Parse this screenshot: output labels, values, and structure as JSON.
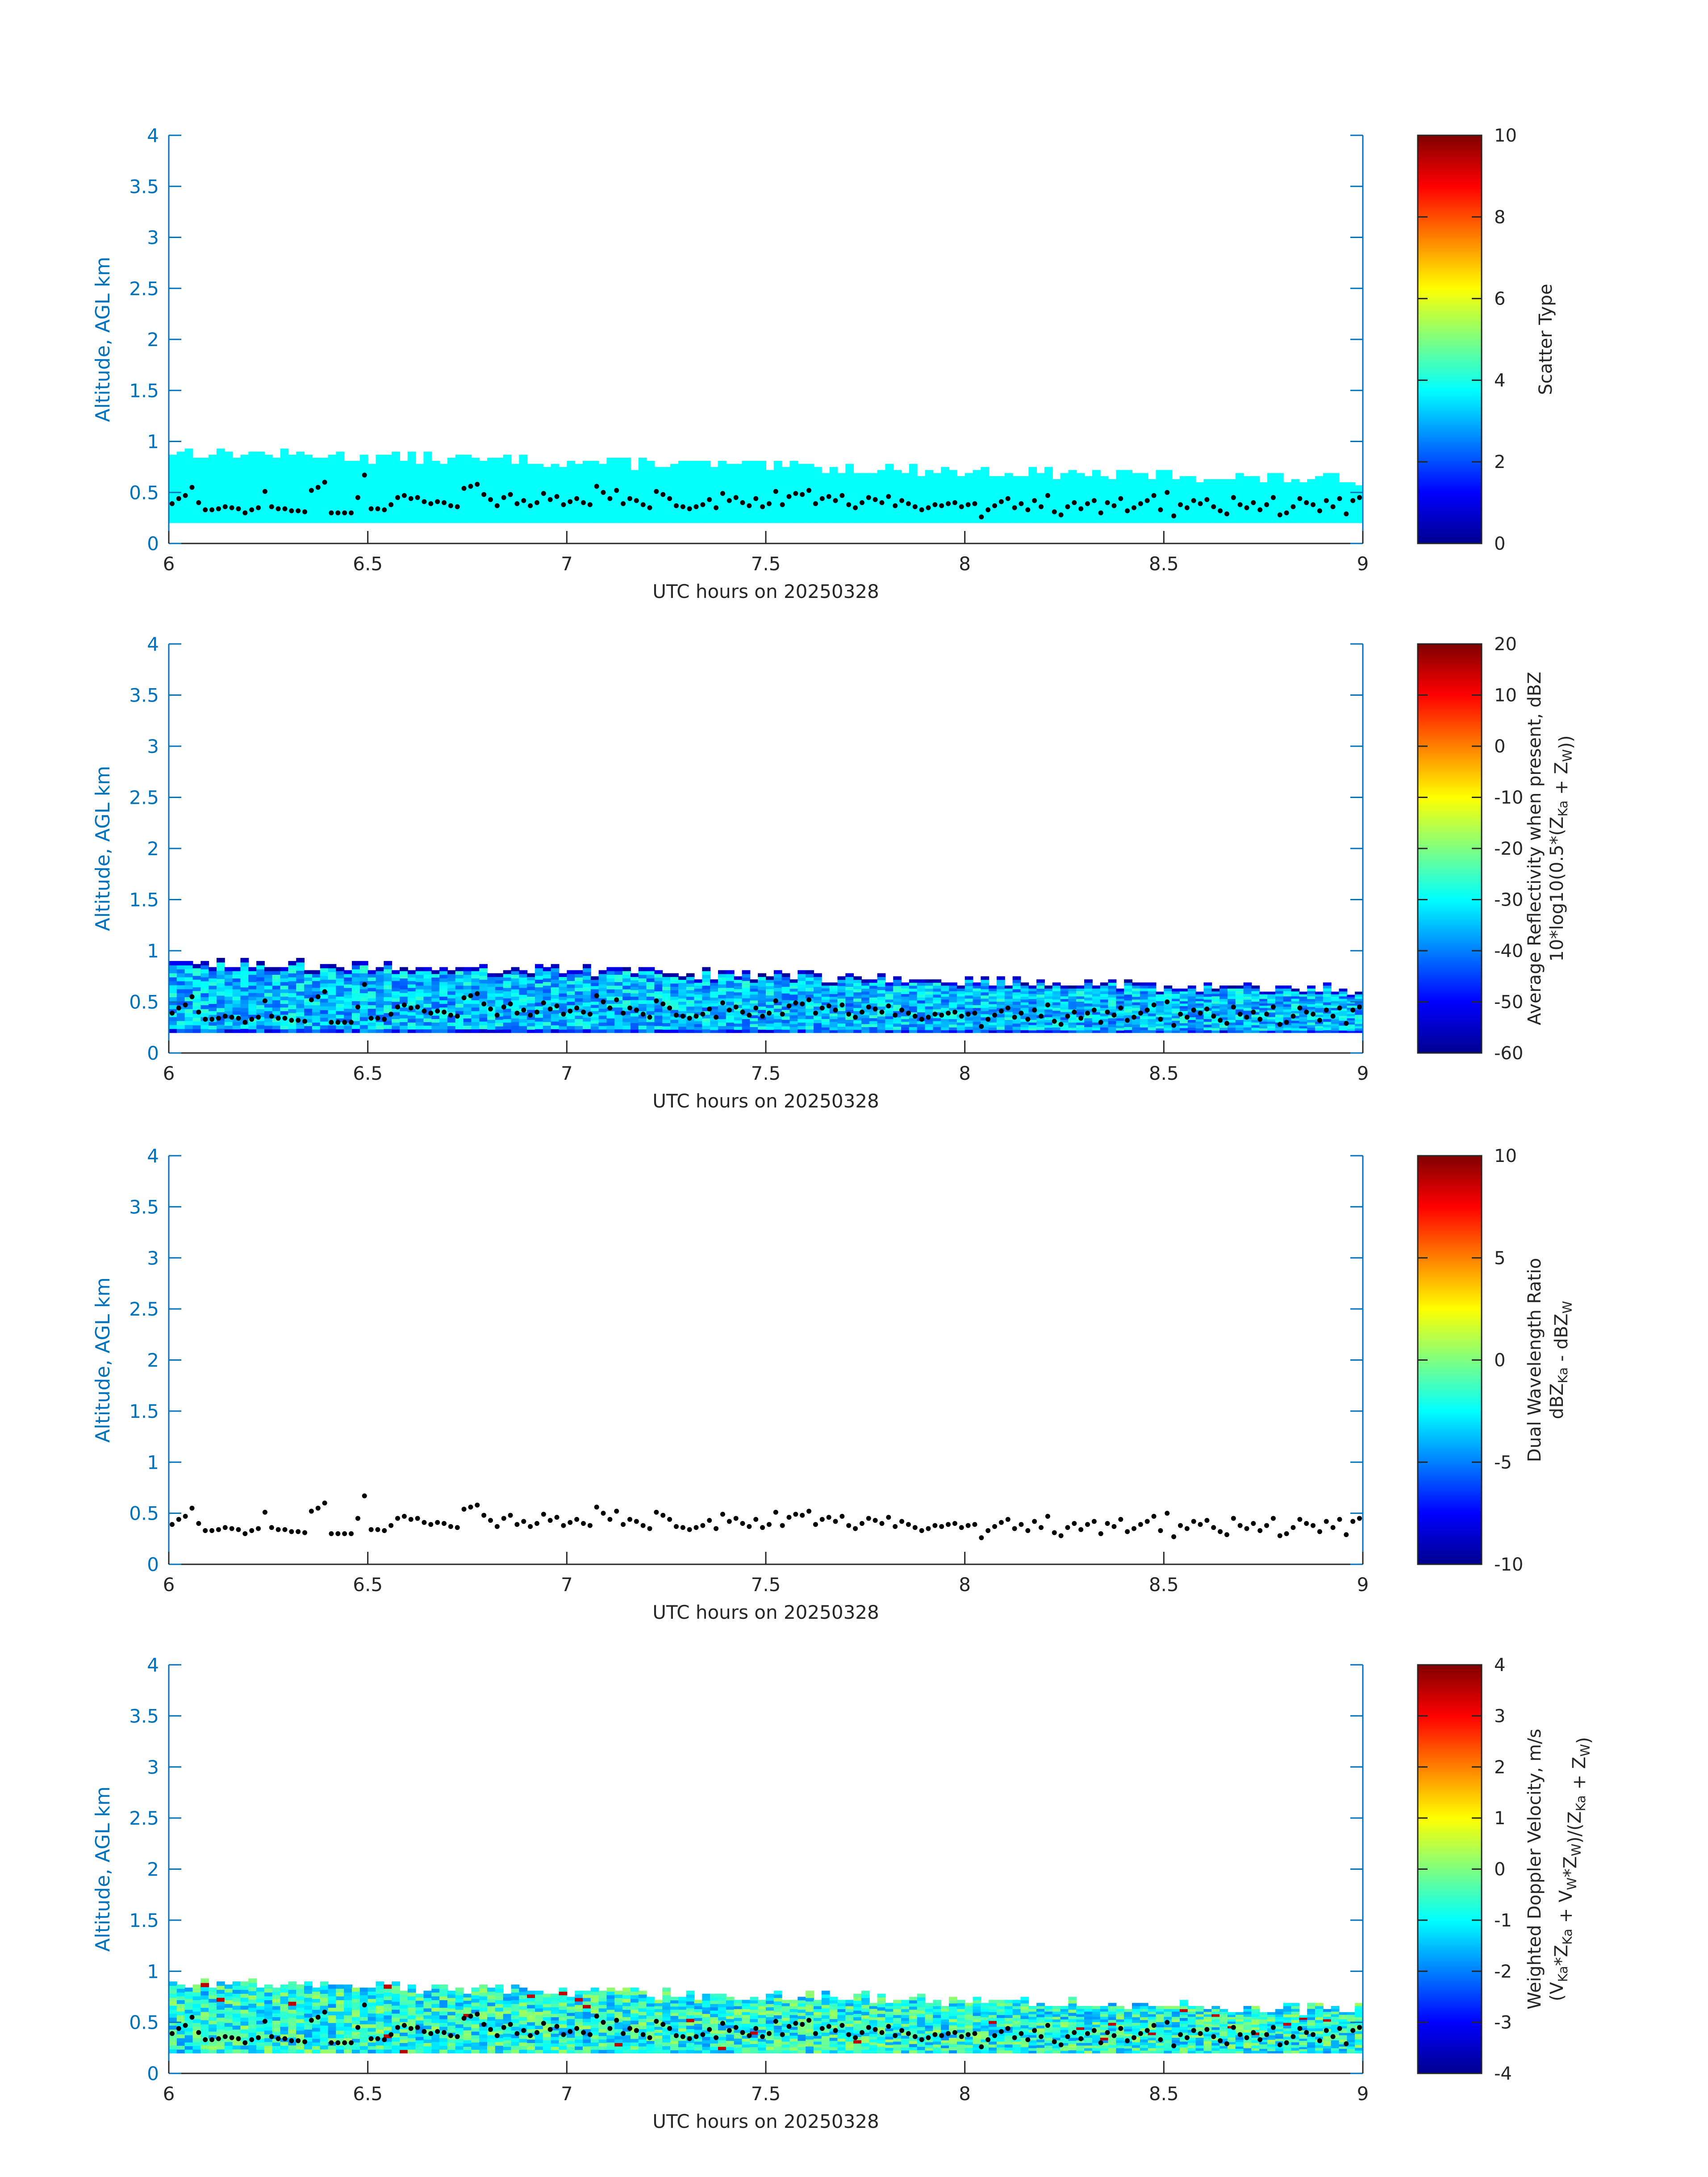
{
  "chart_data": [
    {
      "type": "heatmap",
      "xlabel": "UTC hours on 20250328",
      "ylabel": "Altitude, AGL km",
      "xlim": [
        6,
        9
      ],
      "ylim": [
        0,
        4
      ],
      "xticks": [
        "6",
        "6.5",
        "7",
        "7.5",
        "8",
        "8.5",
        "9"
      ],
      "yticks": [
        "0",
        "0.5",
        "1",
        "1.5",
        "2",
        "2.5",
        "3",
        "3.5",
        "4"
      ],
      "field": "scatter_type",
      "colorbar": {
        "label": "Scatter Type",
        "label2": "",
        "range": [
          0,
          10
        ],
        "ticks": [
          "0",
          "2",
          "4",
          "6",
          "8",
          "10"
        ]
      },
      "fill": {
        "bottom_km": 0.2,
        "top_km_start": 0.9,
        "top_km_end": 0.62,
        "value": 3.8
      }
    },
    {
      "type": "heatmap",
      "xlabel": "UTC hours on 20250328",
      "ylabel": "Altitude, AGL km",
      "xlim": [
        6,
        9
      ],
      "ylim": [
        0,
        4
      ],
      "xticks": [
        "6",
        "6.5",
        "7",
        "7.5",
        "8",
        "8.5",
        "9"
      ],
      "yticks": [
        "0",
        "0.5",
        "1",
        "1.5",
        "2",
        "2.5",
        "3",
        "3.5",
        "4"
      ],
      "field": "reflectivity",
      "colorbar": {
        "label": "Average Reflectivity when present, dBZ",
        "label2": "10*log10(0.5*(Z_Ka + Z_W))",
        "range": [
          -60,
          20
        ],
        "ticks": [
          "-60",
          "-50",
          "-40",
          "-30",
          "-20",
          "-10",
          "0",
          "10",
          "20"
        ]
      },
      "fill": {
        "bottom_km": 0.2,
        "top_km_start": 0.9,
        "top_km_end": 0.62,
        "typical_value": -35,
        "top_edge_value": -55
      }
    },
    {
      "type": "heatmap",
      "xlabel": "UTC hours on 20250328",
      "ylabel": "Altitude, AGL km",
      "xlim": [
        6,
        9
      ],
      "ylim": [
        0,
        4
      ],
      "xticks": [
        "6",
        "6.5",
        "7",
        "7.5",
        "8",
        "8.5",
        "9"
      ],
      "yticks": [
        "0",
        "0.5",
        "1",
        "1.5",
        "2",
        "2.5",
        "3",
        "3.5",
        "4"
      ],
      "field": "dual_wavelength_ratio",
      "colorbar": {
        "label": "Dual Wavelength Ratio",
        "label2": "dBZ_Ka - dBZ_W",
        "range": [
          -10,
          10
        ],
        "ticks": [
          "-10",
          "-5",
          "0",
          "5",
          "10"
        ]
      },
      "fill": null
    },
    {
      "type": "heatmap",
      "xlabel": "UTC hours on 20250328",
      "ylabel": "Altitude, AGL km",
      "xlim": [
        6,
        9
      ],
      "ylim": [
        0,
        4
      ],
      "xticks": [
        "6",
        "6.5",
        "7",
        "7.5",
        "8",
        "8.5",
        "9"
      ],
      "yticks": [
        "0",
        "0.5",
        "1",
        "1.5",
        "2",
        "2.5",
        "3",
        "3.5",
        "4"
      ],
      "field": "doppler_velocity",
      "colorbar": {
        "label": "Weighted Doppler Velocity, m/s",
        "label2": "(V_Ka*Z_Ka + V_W*Z_W)/(Z_Ka + Z_W)",
        "range": [
          -4,
          4
        ],
        "ticks": [
          "-4",
          "-3",
          "-2",
          "-1",
          "0",
          "1",
          "2",
          "3",
          "4"
        ]
      },
      "fill": {
        "bottom_km": 0.2,
        "top_km_start": 0.9,
        "top_km_end": 0.62,
        "typical_value": -0.8
      }
    }
  ],
  "cloud_base": {
    "x_range": [
      6,
      9
    ],
    "altitude_km": [
      0.39,
      0.44,
      0.47,
      0.55,
      0.4,
      0.33,
      0.33,
      0.34,
      0.36,
      0.35,
      0.34,
      0.3,
      0.33,
      0.35,
      0.51,
      0.36,
      0.34,
      0.34,
      0.32,
      0.32,
      0.31,
      0.52,
      0.55,
      0.6,
      0.3,
      0.3,
      0.3,
      0.3,
      0.45,
      0.67,
      0.34,
      0.34,
      0.33,
      0.38,
      0.45,
      0.47,
      0.44,
      0.45,
      0.41,
      0.39,
      0.41,
      0.4,
      0.37,
      0.36,
      0.54,
      0.56,
      0.58,
      0.48,
      0.43,
      0.37,
      0.45,
      0.48,
      0.39,
      0.42,
      0.37,
      0.4,
      0.49,
      0.43,
      0.46,
      0.38,
      0.41,
      0.44,
      0.4,
      0.38,
      0.56,
      0.5,
      0.44,
      0.52,
      0.39,
      0.44,
      0.42,
      0.38,
      0.35,
      0.51,
      0.48,
      0.44,
      0.37,
      0.36,
      0.34,
      0.36,
      0.38,
      0.43,
      0.35,
      0.49,
      0.42,
      0.45,
      0.4,
      0.37,
      0.44,
      0.36,
      0.39,
      0.51,
      0.38,
      0.46,
      0.49,
      0.48,
      0.52,
      0.39,
      0.44,
      0.46,
      0.42,
      0.47,
      0.38,
      0.35,
      0.4,
      0.45,
      0.43,
      0.4,
      0.46,
      0.37,
      0.42,
      0.39,
      0.36,
      0.33,
      0.35,
      0.38,
      0.37,
      0.39,
      0.4,
      0.36,
      0.38,
      0.39,
      0.26,
      0.33,
      0.37,
      0.41,
      0.44,
      0.35,
      0.39,
      0.33,
      0.42,
      0.36,
      0.47,
      0.31,
      0.28,
      0.36,
      0.4,
      0.34,
      0.39,
      0.42,
      0.3,
      0.4,
      0.37,
      0.44,
      0.32,
      0.35,
      0.39,
      0.42,
      0.47,
      0.33,
      0.5,
      0.27,
      0.38,
      0.35,
      0.42,
      0.39,
      0.43,
      0.36,
      0.32,
      0.29,
      0.45,
      0.38,
      0.35,
      0.4,
      0.33,
      0.38,
      0.45,
      0.28,
      0.3,
      0.36,
      0.44,
      0.4,
      0.38,
      0.32,
      0.42,
      0.36,
      0.44,
      0.29,
      0.42,
      0.45
    ]
  }
}
